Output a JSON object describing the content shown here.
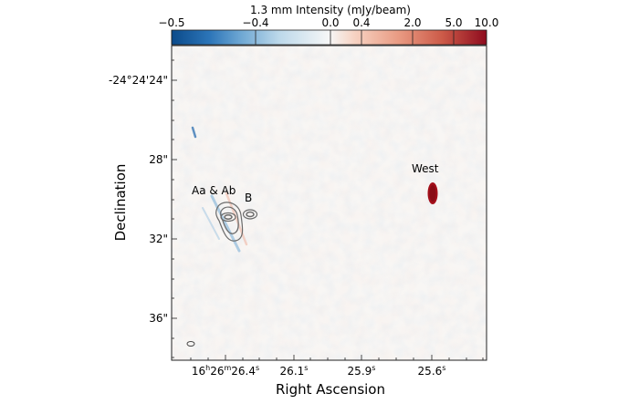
{
  "colorbar": {
    "title": "1.3 mm Intensity (mJy/beam)",
    "ticks": [
      "−0.5",
      "−0.4",
      "0.0",
      "0.4",
      "2.0",
      "5.0",
      "10.0"
    ],
    "stops": [
      "#0b4a8a",
      "#2c75b8",
      "#6ea7d3",
      "#bcd8ea",
      "#f6f7f7",
      "#f7d3c3",
      "#e99b83",
      "#cc5a48",
      "#8e0b1e"
    ]
  },
  "axes": {
    "xlabel": "Right Ascension",
    "ylabel": "Declination",
    "xticks": [
      {
        "main": "16",
        "h": "h",
        "m": "26",
        "mm": "m",
        "s": "26.4",
        "ss": "s"
      },
      {
        "main": "",
        "s": "26.1",
        "ss": "s"
      },
      {
        "main": "",
        "s": "25.9",
        "ss": "s"
      },
      {
        "main": "",
        "s": "25.6",
        "ss": "s"
      }
    ],
    "yticks": [
      "-24°24'24\"",
      "28\"",
      "32\"",
      "36\""
    ]
  },
  "labels": {
    "aa_ab": "Aa & Ab",
    "b": "B",
    "west": "West"
  },
  "colors": {
    "background": "#f8f6f4",
    "west_source": "#a30f1a",
    "contour": "#6b6b6b"
  }
}
